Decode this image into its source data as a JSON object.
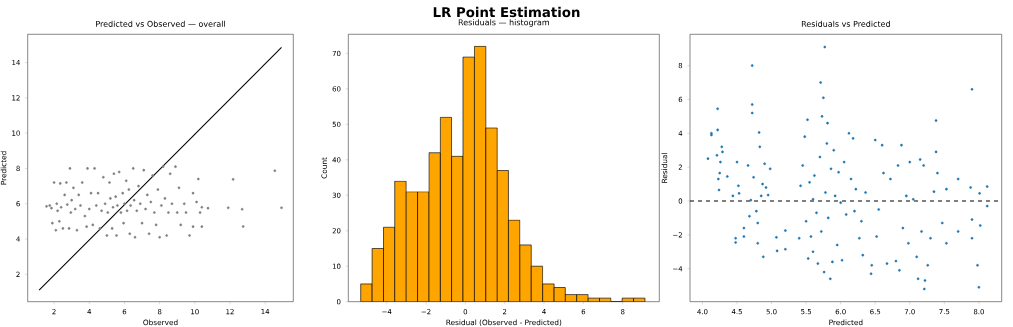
{
  "chart_data": [
    {
      "type": "scatter",
      "title": "Predicted vs Observed — overall",
      "xlabel": "Observed",
      "ylabel": "Predicted",
      "annotations": [
        "LR Point Estimation"
      ],
      "xlim": [
        0.5,
        15.6
      ],
      "ylim": [
        0.45,
        15.6
      ],
      "xticks": [
        2,
        4,
        6,
        8,
        10,
        12,
        14
      ],
      "yticks": [
        2,
        4,
        6,
        8,
        10,
        12,
        14
      ],
      "series": [
        {
          "type": "scatter",
          "color": "#808080",
          "x": [
            1.57,
            1.75,
            1.85,
            1.9,
            2.0,
            2.1,
            2.15,
            2.2,
            2.3,
            2.35,
            2.4,
            2.5,
            2.6,
            2.7,
            2.75,
            2.85,
            2.9,
            2.95,
            3.0,
            3.1,
            3.2,
            3.3,
            3.4,
            3.5,
            3.6,
            3.75,
            3.85,
            3.9,
            4.0,
            4.1,
            4.2,
            4.3,
            4.4,
            4.5,
            4.6,
            4.7,
            4.8,
            4.9,
            5.0,
            5.05,
            5.15,
            5.2,
            5.3,
            5.35,
            5.4,
            5.5,
            5.55,
            5.6,
            5.7,
            5.8,
            5.9,
            5.95,
            6.0,
            6.1,
            6.15,
            6.25,
            6.3,
            6.35,
            6.5,
            6.55,
            6.6,
            6.7,
            6.8,
            6.9,
            7.0,
            7.1,
            7.2,
            7.3,
            7.4,
            7.5,
            7.6,
            7.7,
            7.8,
            7.9,
            8.0,
            8.1,
            8.2,
            8.3,
            8.4,
            8.5,
            8.6,
            8.7,
            8.9,
            9.0,
            9.1,
            9.2,
            9.4,
            9.5,
            9.7,
            9.9,
            9.9,
            10.1,
            10.2,
            10.3,
            10.4,
            10.4,
            10.75,
            11.9,
            12.18,
            12.69,
            12.75,
            14.55,
            14.93
          ],
          "values": [
            5.85,
            5.9,
            5.75,
            4.9,
            7.2,
            4.5,
            6.0,
            5.6,
            5.0,
            7.15,
            5.8,
            4.6,
            6.5,
            7.2,
            5.95,
            4.6,
            8.0,
            5.5,
            6.2,
            6.9,
            5.7,
            4.5,
            6.5,
            5.9,
            7.2,
            5.3,
            4.7,
            8.0,
            5.7,
            6.6,
            4.8,
            8.0,
            5.9,
            6.6,
            4.6,
            5.6,
            7.5,
            6.0,
            4.2,
            5.5,
            7.2,
            6.3,
            4.6,
            5.8,
            7.7,
            6.4,
            4.2,
            5.9,
            7.8,
            5.5,
            6.6,
            4.9,
            6.0,
            7.3,
            5.6,
            6.8,
            4.3,
            5.9,
            8.0,
            6.2,
            4.1,
            5.6,
            7.0,
            6.0,
            4.9,
            7.9,
            5.7,
            6.5,
            4.3,
            6.1,
            7.6,
            5.5,
            4.8,
            6.8,
            4.1,
            5.9,
            8.1,
            6.3,
            4.2,
            5.5,
            7.7,
            6.0,
            8.1,
            5.5,
            6.9,
            4.8,
            6.0,
            5.5,
            4.2,
            6.6,
            4.7,
            6.1,
            7.4,
            5.5,
            4.7,
            5.8,
            5.75,
            5.77,
            7.38,
            5.69,
            4.71,
            7.87,
            5.77
          ]
        },
        {
          "type": "line",
          "color": "#000000",
          "x": [
            1.15,
            14.93
          ],
          "values": [
            1.1,
            14.86
          ]
        }
      ]
    },
    {
      "type": "histogram",
      "title": "Residuals — histogram",
      "xlabel": "Residual (Observed - Predicted)",
      "ylabel": "Count",
      "color": "#ffa500",
      "bins": [
        -5.32,
        -4.74,
        -4.16,
        -3.59,
        -3.01,
        -2.43,
        -1.85,
        -1.27,
        -0.7,
        -0.12,
        0.46,
        1.04,
        1.62,
        2.19,
        2.77,
        3.35,
        3.93,
        4.51,
        5.08,
        5.66,
        6.24,
        6.82,
        7.4,
        7.97,
        8.55,
        9.13
      ],
      "values": [
        5,
        15,
        21,
        34,
        31,
        31,
        42,
        52,
        41,
        69,
        72,
        49,
        37,
        23,
        16,
        10,
        5,
        4,
        2,
        2,
        1,
        1,
        0,
        1,
        1
      ],
      "xlim": [
        -5.95,
        9.86
      ],
      "ylim": [
        0,
        75.4
      ],
      "xticks": [
        {
          "value": -4,
          "label": "−4"
        },
        {
          "value": -2,
          "label": "−2"
        },
        0,
        2,
        4,
        6,
        8
      ],
      "yticks": [
        0,
        10,
        20,
        30,
        40,
        50,
        60,
        70
      ]
    },
    {
      "type": "scatter",
      "title": "Residuals vs Predicted",
      "xlabel": "Predicted",
      "ylabel": "Residual",
      "color": "#1f77b4",
      "xlim": [
        3.82,
        8.33
      ],
      "ylim": [
        -5.95,
        9.85
      ],
      "xticks": [
        {
          "value": 4,
          "label": "4.0"
        },
        {
          "value": 4.5,
          "label": "4.5"
        },
        {
          "value": 5,
          "label": "5.0"
        },
        {
          "value": 5.5,
          "label": "5.5"
        },
        {
          "value": 6,
          "label": "6.0"
        },
        {
          "value": 6.5,
          "label": "6.5"
        },
        {
          "value": 7,
          "label": "7.0"
        },
        {
          "value": 7.5,
          "label": "7.5"
        },
        {
          "value": 8,
          "label": "8.0"
        }
      ],
      "yticks": [
        {
          "value": -4,
          "label": "−4"
        },
        {
          "value": -2,
          "label": "−2"
        },
        0,
        2,
        4,
        6,
        8
      ],
      "ref_lines": [
        {
          "axis": "y",
          "value": 0,
          "color": "#000000",
          "line_style": "dashed"
        }
      ],
      "x": [
        4.08,
        4.13,
        4.13,
        4.21,
        4.22,
        4.22,
        4.23,
        4.24,
        4.25,
        4.26,
        4.28,
        4.29,
        4.36,
        4.44,
        4.48,
        4.48,
        4.5,
        4.52,
        4.53,
        4.6,
        4.6,
        4.66,
        4.68,
        4.7,
        4.72,
        4.72,
        4.72,
        4.74,
        4.78,
        4.8,
        4.8,
        4.82,
        4.83,
        4.85,
        4.87,
        4.88,
        4.9,
        4.92,
        4.95,
        4.98,
        5.07,
        5.08,
        5.2,
        5.2,
        5.4,
        5.42,
        5.45,
        5.48,
        5.5,
        5.52,
        5.53,
        5.55,
        5.57,
        5.6,
        5.6,
        5.62,
        5.65,
        5.67,
        5.7,
        5.71,
        5.72,
        5.73,
        5.75,
        5.76,
        5.77,
        5.78,
        5.8,
        5.81,
        5.82,
        5.85,
        5.86,
        5.88,
        5.9,
        5.92,
        5.95,
        5.97,
        6.0,
        6.02,
        6.05,
        6.08,
        6.12,
        6.15,
        6.18,
        6.2,
        6.22,
        6.27,
        6.3,
        6.32,
        6.36,
        6.44,
        6.45,
        6.5,
        6.52,
        6.55,
        6.6,
        6.62,
        6.67,
        6.72,
        6.8,
        6.83,
        6.85,
        6.88,
        6.9,
        6.95,
        6.98,
        7.0,
        7.05,
        7.1,
        7.12,
        7.15,
        7.17,
        7.2,
        7.21,
        7.22,
        7.26,
        7.3,
        7.35,
        7.38,
        7.38,
        7.4,
        7.47,
        7.53,
        7.53,
        7.7,
        7.7,
        7.88,
        7.9,
        7.9,
        7.9,
        7.98,
        8.0,
        8.01,
        8.02,
        8.12,
        8.12
      ],
      "values": [
        2.5,
        4.0,
        3.9,
        2.7,
        5.45,
        4.2,
        1.3,
        0.65,
        1.65,
        2.3,
        3.2,
        2.9,
        1.45,
        0.3,
        -2.2,
        -2.45,
        2.3,
        0.9,
        0.45,
        -2.1,
        -1.6,
        2.1,
        -0.9,
        0.05,
        8.0,
        5.7,
        5.2,
        1.4,
        -0.6,
        -2.5,
        -1.3,
        4.05,
        3.2,
        0.3,
        1.0,
        -3.3,
        2.2,
        0.8,
        0.35,
        1.9,
        -2.15,
        -2.95,
        -1.75,
        -2.85,
        -2.2,
        0.9,
        2.1,
        3.8,
        -1.2,
        4.8,
        -3.4,
        1.1,
        -2.1,
        0.1,
        -3.0,
        1.5,
        -0.7,
        -3.7,
        2.6,
        7.0,
        -1.8,
        5.0,
        6.1,
        -4.2,
        9.1,
        0.5,
        3.4,
        4.6,
        -1.0,
        -4.6,
        1.9,
        -3.6,
        3.0,
        0.3,
        -2.6,
        1.7,
        -0.1,
        -3.5,
        2.3,
        -0.8,
        4.0,
        1.3,
        3.7,
        -0.6,
        0.7,
        -2.2,
        -1.2,
        -3.2,
        0.5,
        -4.3,
        -3.8,
        3.6,
        -2.1,
        -0.5,
        3.3,
        1.65,
        -3.7,
        1.3,
        -3.55,
        2.1,
        -4.1,
        3.3,
        -1.6,
        0.3,
        -2.5,
        2.3,
        0.1,
        -3.3,
        -4.6,
        2.45,
        -1.8,
        2.1,
        -5.2,
        -4.7,
        -3.8,
        -2.2,
        0.55,
        4.75,
        2.9,
        1.65,
        -1.3,
        -2.5,
        0.7,
        1.3,
        -1.8,
        0.8,
        6.6,
        -2.2,
        -1.1,
        -3.8,
        -5.1,
        0.45,
        -1.45,
        0.85,
        -0.3
      ]
    }
  ]
}
